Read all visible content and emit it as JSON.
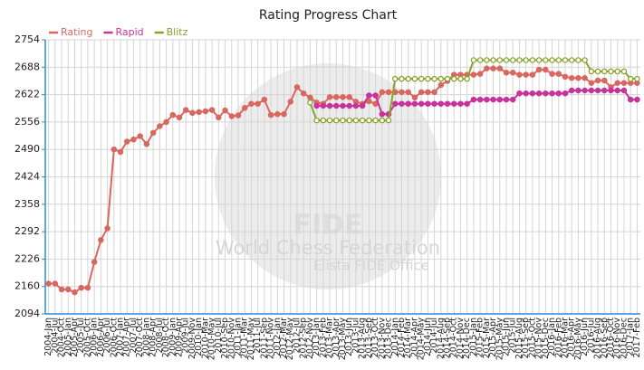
{
  "chart_data": {
    "type": "line",
    "title": "Rating Progress Chart",
    "watermark": [
      "FIDE",
      "World Chess Federation",
      "Elista FIDE Office"
    ],
    "categories": [
      "2004-Jan",
      "2004-Jul",
      "2004-Oct",
      "2005-Jan",
      "2005-Apr",
      "2005-Jul",
      "2005-Oct",
      "2006-Jan",
      "2006-Apr",
      "2006-Jul",
      "2006-Oct",
      "2007-Jan",
      "2007-Apr",
      "2007-Jul",
      "2007-Oct",
      "2008-Jan",
      "2008-Apr",
      "2008-Jul",
      "2008-Oct",
      "2009-Jan",
      "2009-Apr",
      "2009-Jul",
      "2009-Nov",
      "2010-Jan",
      "2010-Mar",
      "2010-May",
      "2010-Jul",
      "2010-Sep",
      "2010-Nov",
      "2011-Jan",
      "2011-Mar",
      "2011-May",
      "2011-Jul",
      "2011-Sep",
      "2011-Nov",
      "2012-Jan",
      "2012-Mar",
      "2012-May",
      "2012-Jul",
      "2012-Sep",
      "2012-Nov",
      "2013-Jan",
      "2013-Feb",
      "2013-Mar",
      "2013-Apr",
      "2013-May",
      "2013-Jun",
      "2013-Jul",
      "2013-Aug",
      "2013-Sep",
      "2013-Oct",
      "2013-Nov",
      "2013-Dec",
      "2014-Jan",
      "2014-Feb",
      "2014-Mar",
      "2014-Apr",
      "2014-May",
      "2014-Jun",
      "2014-Jul",
      "2014-Aug",
      "2014-Sep",
      "2014-Oct",
      "2014-Nov",
      "2014-Dec",
      "2015-Jan",
      "2015-Feb",
      "2015-Mar",
      "2015-Apr",
      "2015-May",
      "2015-Jun",
      "2015-Jul",
      "2015-Aug",
      "2015-Sep",
      "2015-Oct",
      "2015-Nov",
      "2015-Dec",
      "2016-Jan",
      "2016-Feb",
      "2016-Mar",
      "2016-Apr",
      "2016-May",
      "2016-Jun",
      "2016-Jul",
      "2016-Aug",
      "2016-Sep",
      "2016-Oct",
      "2016-Nov",
      "2016-Dec",
      "2017-Jan",
      "2017-Feb"
    ],
    "series": [
      {
        "name": "Rating",
        "color": "#d9675f",
        "hollow": false,
        "values": [
          2167,
          2167,
          2153,
          2153,
          2146,
          2157,
          2157,
          2219,
          2272,
          2300,
          2490,
          2484,
          2509,
          2514,
          2522,
          2503,
          2530,
          2546,
          2556,
          2573,
          2567,
          2585,
          2578,
          2580,
          2582,
          2585,
          2567,
          2584,
          2570,
          2572,
          2590,
          2600,
          2600,
          2610,
          2573,
          2575,
          2575,
          2605,
          2640,
          2625,
          2615,
          2603,
          2600,
          2616,
          2616,
          2616,
          2616,
          2605,
          2600,
          2606,
          2600,
          2628,
          2628,
          2628,
          2628,
          2628,
          2615,
          2628,
          2628,
          2628,
          2645,
          2655,
          2670,
          2670,
          2670,
          2670,
          2672,
          2685,
          2685,
          2685,
          2675,
          2675,
          2670,
          2670,
          2670,
          2682,
          2682,
          2672,
          2672,
          2665,
          2662,
          2662,
          2662,
          2650,
          2656,
          2656,
          2640,
          2650,
          2650,
          2650,
          2650
        ]
      },
      {
        "name": "Rapid",
        "color": "#c8329b",
        "hollow": false,
        "values": [
          null,
          null,
          null,
          null,
          null,
          null,
          null,
          null,
          null,
          null,
          null,
          null,
          null,
          null,
          null,
          null,
          null,
          null,
          null,
          null,
          null,
          null,
          null,
          null,
          null,
          null,
          null,
          null,
          null,
          null,
          null,
          null,
          null,
          null,
          null,
          null,
          null,
          null,
          null,
          null,
          null,
          2595,
          2595,
          2595,
          2595,
          2595,
          2595,
          2595,
          2595,
          2620,
          2620,
          2575,
          2575,
          2600,
          2600,
          2600,
          2600,
          2600,
          2600,
          2600,
          2600,
          2600,
          2600,
          2600,
          2600,
          2610,
          2610,
          2610,
          2610,
          2610,
          2610,
          2610,
          2625,
          2625,
          2625,
          2625,
          2625,
          2625,
          2625,
          2625,
          2632,
          2632,
          2632,
          2632,
          2632,
          2632,
          2632,
          2632,
          2632,
          2610,
          2610
        ]
      },
      {
        "name": "Blitz",
        "color": "#86a32c",
        "hollow": true,
        "values": [
          null,
          null,
          null,
          null,
          null,
          null,
          null,
          null,
          null,
          null,
          null,
          null,
          null,
          null,
          null,
          null,
          null,
          null,
          null,
          null,
          null,
          null,
          null,
          null,
          null,
          null,
          null,
          null,
          null,
          null,
          null,
          null,
          null,
          null,
          null,
          null,
          null,
          null,
          null,
          null,
          2603,
          2560,
          2560,
          2560,
          2560,
          2560,
          2560,
          2560,
          2560,
          2560,
          2560,
          2560,
          2560,
          2660,
          2660,
          2660,
          2660,
          2660,
          2660,
          2660,
          2660,
          2660,
          2660,
          2660,
          2660,
          2705,
          2705,
          2705,
          2705,
          2705,
          2705,
          2705,
          2705,
          2705,
          2705,
          2705,
          2705,
          2705,
          2705,
          2705,
          2705,
          2705,
          2705,
          2678,
          2678,
          2678,
          2678,
          2678,
          2678,
          2660,
          2660
        ]
      }
    ],
    "ylim": [
      2094,
      2754
    ],
    "yticks": [
      2094,
      2160,
      2226,
      2292,
      2358,
      2424,
      2490,
      2556,
      2622,
      2688,
      2754
    ],
    "grid": true
  }
}
